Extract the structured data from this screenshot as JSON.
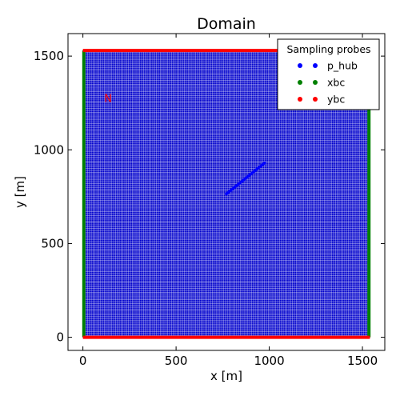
{
  "chart_data": {
    "type": "scatter",
    "title": "Domain",
    "xlabel": "x [m]",
    "ylabel": "y [m]",
    "xlim": [
      -80,
      1620
    ],
    "ylim": [
      -70,
      1620
    ],
    "xticks": [
      0,
      500,
      1000,
      1500
    ],
    "yticks": [
      0,
      500,
      1000,
      1500
    ],
    "grid": false,
    "legend": {
      "title": "Sampling probes",
      "position": "top-right",
      "entries": [
        "p_hub",
        "xbc",
        "ybc"
      ]
    },
    "series": [
      {
        "name": "p_hub",
        "color": "#0000ff",
        "x_range": [
          770,
          975
        ],
        "y_start": 765,
        "y_end": 930
      },
      {
        "name": "xbc",
        "color": "#008000",
        "x": [
          5,
          1535
        ],
        "y_range": [
          0,
          1530
        ]
      },
      {
        "name": "ybc",
        "color": "#ff0000",
        "y": [
          0,
          1530
        ],
        "x_range": [
          0,
          1540
        ]
      }
    ],
    "mesh": {
      "color": "#0000cc",
      "x_range": [
        5,
        1535
      ],
      "y_range": [
        0,
        1530
      ],
      "spacing": 10
    },
    "annotations": [
      {
        "text": "N",
        "x": 135,
        "y": 1270,
        "color": "#ff0000"
      }
    ]
  }
}
